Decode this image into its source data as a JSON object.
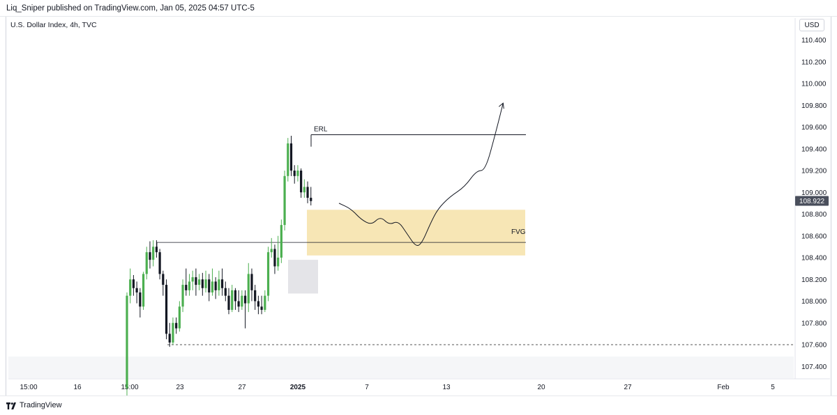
{
  "header": {
    "published_text": "Liq_Sniper published on TradingView.com, Jan 05, 2025 04:57 UTC-5"
  },
  "chart_header": {
    "symbol_title": "U.S. Dollar Index, 4h, TVC",
    "currency": "USD"
  },
  "footer": {
    "brand": "TradingView"
  },
  "colors": {
    "up_candle": "#4caf50",
    "down_candle": "#131722",
    "fvg_zone": "#f7e6b5",
    "gray_zone": "#e4e4e8",
    "last_price_badge": "#4a4f5c"
  },
  "chart_data": {
    "type": "candlestick",
    "y_ticks": [
      "110.400",
      "110.200",
      "110.000",
      "109.800",
      "109.600",
      "109.400",
      "109.200",
      "109.000",
      "108.800",
      "108.600",
      "108.400",
      "108.200",
      "108.000",
      "107.800",
      "107.600",
      "107.400"
    ],
    "ylim": [
      107.3,
      110.5
    ],
    "x_tick_labels": [
      {
        "label": "15:00",
        "bold": false
      },
      {
        "label": "16",
        "bold": false
      },
      {
        "label": "15:00",
        "bold": false
      },
      {
        "label": "23",
        "bold": false
      },
      {
        "label": "27",
        "bold": false
      },
      {
        "label": "2025",
        "bold": true
      },
      {
        "label": "7",
        "bold": false
      },
      {
        "label": "13",
        "bold": false
      },
      {
        "label": "20",
        "bold": false
      },
      {
        "label": "27",
        "bold": false
      },
      {
        "label": "Feb",
        "bold": false
      },
      {
        "label": "5",
        "bold": false
      }
    ],
    "last_price": "108.922",
    "annotations": {
      "erl": {
        "label": "ERL",
        "price": 109.53
      },
      "fvg": {
        "label": "FVG",
        "top": 108.84,
        "bottom": 108.42,
        "mid": 108.54
      },
      "consolidation_high": 108.54,
      "sell_side_low": 107.6
    },
    "candles": [
      [
        107.2,
        108.05,
        107.1,
        108.08
      ],
      [
        108.05,
        108.2,
        107.98,
        108.3
      ],
      [
        108.2,
        108.12,
        108.05,
        108.24
      ],
      [
        108.12,
        108.08,
        107.98,
        108.18
      ],
      [
        108.08,
        107.95,
        107.85,
        108.12
      ],
      [
        107.95,
        108.25,
        107.92,
        108.27
      ],
      [
        108.25,
        108.45,
        108.2,
        108.5
      ],
      [
        108.45,
        108.38,
        108.3,
        108.55
      ],
      [
        108.38,
        108.5,
        108.32,
        108.56
      ],
      [
        108.5,
        108.45,
        108.4,
        108.56
      ],
      [
        108.45,
        108.25,
        108.2,
        108.48
      ],
      [
        108.25,
        108.15,
        108.05,
        108.28
      ],
      [
        108.15,
        107.7,
        107.65,
        108.2
      ],
      [
        107.7,
        107.62,
        107.58,
        107.8
      ],
      [
        107.62,
        107.8,
        107.6,
        107.85
      ],
      [
        107.8,
        107.75,
        107.7,
        107.85
      ],
      [
        107.75,
        107.95,
        107.72,
        108.0
      ],
      [
        107.95,
        108.15,
        107.9,
        108.2
      ],
      [
        108.15,
        108.1,
        108.05,
        108.3
      ],
      [
        108.1,
        108.18,
        108.05,
        108.25
      ],
      [
        108.18,
        108.22,
        108.1,
        108.28
      ],
      [
        108.22,
        108.15,
        108.05,
        108.3
      ],
      [
        108.15,
        108.2,
        108.1,
        108.25
      ],
      [
        108.2,
        108.12,
        108.05,
        108.26
      ],
      [
        108.12,
        108.2,
        108.08,
        108.28
      ],
      [
        108.2,
        108.08,
        108.0,
        108.25
      ],
      [
        108.08,
        108.18,
        108.05,
        108.3
      ],
      [
        108.18,
        108.1,
        108.02,
        108.22
      ],
      [
        108.1,
        108.2,
        108.05,
        108.28
      ],
      [
        108.2,
        108.12,
        108.05,
        108.3
      ],
      [
        108.12,
        108.05,
        108.0,
        108.18
      ],
      [
        108.05,
        107.92,
        107.88,
        108.12
      ],
      [
        107.92,
        108.1,
        107.9,
        108.15
      ],
      [
        108.1,
        108.0,
        107.92,
        108.12
      ],
      [
        108.0,
        107.95,
        107.9,
        108.1
      ],
      [
        107.95,
        108.05,
        107.92,
        108.1
      ],
      [
        108.05,
        107.98,
        107.75,
        108.1
      ],
      [
        107.98,
        108.25,
        107.9,
        108.35
      ],
      [
        108.25,
        108.1,
        108.0,
        108.3
      ],
      [
        108.1,
        108.0,
        107.92,
        108.15
      ],
      [
        108.0,
        107.95,
        107.88,
        108.05
      ],
      [
        107.95,
        107.92,
        107.88,
        108.05
      ],
      [
        107.92,
        108.05,
        107.9,
        108.1
      ],
      [
        108.05,
        108.45,
        108.0,
        108.5
      ],
      [
        108.45,
        108.48,
        108.4,
        108.58
      ],
      [
        108.48,
        108.32,
        108.25,
        108.52
      ],
      [
        108.32,
        108.4,
        108.28,
        108.6
      ],
      [
        108.4,
        108.7,
        108.35,
        108.75
      ],
      [
        108.7,
        109.15,
        108.65,
        109.2
      ],
      [
        109.15,
        109.45,
        109.1,
        109.5
      ],
      [
        109.45,
        109.2,
        109.15,
        109.52
      ],
      [
        109.2,
        109.15,
        109.08,
        109.25
      ],
      [
        109.15,
        109.2,
        109.1,
        109.25
      ],
      [
        109.2,
        109.0,
        108.95,
        109.22
      ],
      [
        109.0,
        109.05,
        108.95,
        109.12
      ],
      [
        109.05,
        108.95,
        108.9,
        109.1
      ],
      [
        108.95,
        108.92,
        108.88,
        109.05
      ]
    ],
    "projected_path": [
      [
        0,
        108.9
      ],
      [
        8,
        108.85
      ],
      [
        15,
        108.75
      ],
      [
        22,
        108.7
      ],
      [
        28,
        108.78
      ],
      [
        34,
        108.7
      ],
      [
        40,
        108.74
      ],
      [
        46,
        108.62
      ],
      [
        52,
        108.5
      ],
      [
        56,
        108.53
      ],
      [
        62,
        108.72
      ],
      [
        67,
        108.85
      ],
      [
        75,
        108.96
      ],
      [
        85,
        109.05
      ],
      [
        93,
        109.2
      ],
      [
        99,
        109.2
      ],
      [
        106,
        109.55
      ],
      [
        111,
        109.82
      ]
    ]
  }
}
